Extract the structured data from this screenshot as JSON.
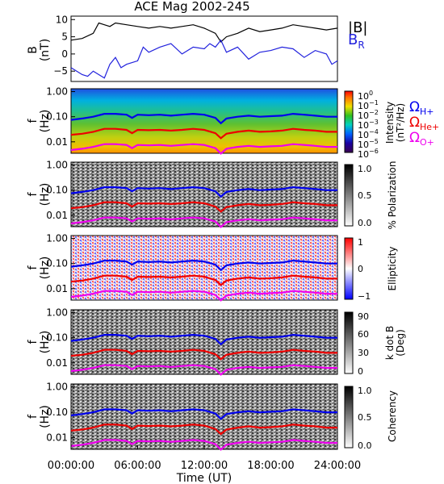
{
  "chart_data": {
    "type": "spectrogram-stack",
    "title": "ACE Mag 2002-245",
    "xlabel": "Time (UT)",
    "x_ticks": [
      "00:00:00",
      "06:00:00",
      "12:00:00",
      "18:00:00",
      "24:00:00"
    ],
    "xlim_hours": [
      0,
      24
    ],
    "colors": {
      "total": "#000000",
      "radial": "#2222dd",
      "h_plus": "#0000ee",
      "he_plus": "#ee0000",
      "o_plus": "#ee00ee"
    },
    "panels": [
      {
        "id": "field",
        "type": "line",
        "ylabel_lines": [
          "B",
          "(nT)"
        ],
        "ylim": [
          -8,
          11
        ],
        "y_ticks": [
          10,
          5,
          0,
          -5
        ],
        "y_tick_labels": [
          "10",
          "5",
          "0",
          "−5"
        ],
        "legend": [
          {
            "name": "|B|",
            "color": "#000000"
          },
          {
            "name_main": "B",
            "name_sub": "R",
            "color": "#2222dd"
          }
        ],
        "series": [
          {
            "name": "|B|",
            "color": "#000000",
            "x": [
              0,
              1,
              2,
              2.5,
              3,
              3.5,
              4,
              5,
              6,
              7,
              8,
              9,
              10,
              11,
              12,
              13,
              13.5,
              14,
              15,
              16,
              17,
              18,
              19,
              20,
              21,
              22,
              23,
              24
            ],
            "y": [
              4,
              4.5,
              6,
              9,
              8.5,
              8,
              9,
              8.5,
              8,
              7.5,
              8,
              7.5,
              8,
              8.5,
              7.5,
              6,
              3.5,
              5,
              6,
              7.5,
              6.5,
              7,
              7.5,
              8.5,
              8,
              7.5,
              7,
              7.5
            ]
          },
          {
            "name": "B_R",
            "color": "#2222dd",
            "x": [
              0,
              1,
              1.5,
              2,
              2.5,
              3,
              3.5,
              4,
              4.5,
              5,
              6,
              6.5,
              7,
              8,
              9,
              10,
              11,
              12,
              12.5,
              13,
              13.5,
              14,
              15,
              16,
              17,
              18,
              19,
              20,
              21,
              22,
              23,
              23.5,
              24
            ],
            "y": [
              -4,
              -6,
              -6.5,
              -5,
              -6,
              -7,
              -3,
              -1,
              -4,
              -3,
              -2,
              2,
              0.5,
              2,
              3,
              0,
              2,
              1.5,
              3,
              2,
              4,
              0.5,
              2,
              -1.5,
              0.5,
              1,
              2,
              1.5,
              -1,
              1,
              0,
              -3,
              -2
            ]
          }
        ]
      },
      {
        "id": "intensity",
        "type": "heatmap",
        "ylabel_lines": [
          "f",
          "(Hz)"
        ],
        "ylim_log": [
          0.0035,
          1.3
        ],
        "y_ticks": [
          1.0,
          0.1,
          0.01
        ],
        "y_tick_labels": [
          "1.00",
          "0.10",
          "0.01"
        ],
        "colorbar": {
          "label_lines": [
            "Intensity",
            "(nT²/Hz)"
          ],
          "ticks": [
            {
              "value": 1,
              "base": "10",
              "exp": "0"
            },
            {
              "value": 0.1,
              "base": "10",
              "exp": "−1"
            },
            {
              "value": 0.01,
              "base": "10",
              "exp": "−2"
            },
            {
              "value": 0.001,
              "base": "10",
              "exp": "−3"
            },
            {
              "value": 0.0001,
              "base": "10",
              "exp": "−4"
            },
            {
              "value": 1e-05,
              "base": "10",
              "exp": "−5"
            },
            {
              "value": 1e-06,
              "base": "10",
              "exp": "−6"
            }
          ]
        },
        "gyro_labels": [
          {
            "symbol": "Ω",
            "sub": "H+",
            "color": "#0000ee"
          },
          {
            "symbol": "Ω",
            "sub": "He+",
            "color": "#ee0000"
          },
          {
            "symbol": "Ω",
            "sub": "O+",
            "color": "#ee00ee"
          }
        ]
      },
      {
        "id": "polarization",
        "type": "heatmap",
        "ylabel_lines": [
          "f",
          "(Hz)"
        ],
        "ylim_log": [
          0.0035,
          1.3
        ],
        "y_ticks": [
          1.0,
          0.1,
          0.01
        ],
        "y_tick_labels": [
          "1.00",
          "0.10",
          "0.01"
        ],
        "colorbar": {
          "label_lines": [
            "% Polarization"
          ],
          "ticks": [
            {
              "value": 1.0,
              "label": "1.0"
            },
            {
              "value": 0.5,
              "label": "0.5"
            },
            {
              "value": 0.0,
              "label": "0.0"
            }
          ]
        }
      },
      {
        "id": "ellipticity",
        "type": "heatmap",
        "ylabel_lines": [
          "f",
          "(Hz)"
        ],
        "ylim_log": [
          0.0035,
          1.3
        ],
        "y_ticks": [
          1.0,
          0.1,
          0.01
        ],
        "y_tick_labels": [
          "1.00",
          "0.10",
          "0.01"
        ],
        "colorbar": {
          "label_lines": [
            "Ellipticity"
          ],
          "ticks": [
            {
              "value": 1,
              "label": "1"
            },
            {
              "value": 0,
              "label": "0"
            },
            {
              "value": -1,
              "label": "−1"
            }
          ]
        }
      },
      {
        "id": "kdotb",
        "type": "heatmap",
        "ylabel_lines": [
          "f",
          "(Hz)"
        ],
        "ylim_log": [
          0.0035,
          1.3
        ],
        "y_ticks": [
          1.0,
          0.1,
          0.01
        ],
        "y_tick_labels": [
          "1.00",
          "0.10",
          "0.01"
        ],
        "colorbar": {
          "label_lines": [
            "k dot B",
            "(Deg)"
          ],
          "ticks": [
            {
              "value": 90,
              "label": "90"
            },
            {
              "value": 60,
              "label": "60"
            },
            {
              "value": 30,
              "label": "30"
            },
            {
              "value": 0,
              "label": "0"
            }
          ]
        }
      },
      {
        "id": "coherency",
        "type": "heatmap",
        "ylabel_lines": [
          "f",
          "(Hz)"
        ],
        "ylim_log": [
          0.0035,
          1.3
        ],
        "y_ticks": [
          1.0,
          0.1,
          0.01
        ],
        "y_tick_labels": [
          "1.00",
          "0.10",
          "0.01"
        ],
        "colorbar": {
          "label_lines": [
            "Coherency"
          ],
          "ticks": [
            {
              "value": 1.0,
              "label": "1.0"
            },
            {
              "value": 0.5,
              "label": "0.5"
            },
            {
              "value": 0.0,
              "label": "0.0"
            }
          ]
        }
      }
    ],
    "gyrofrequency_curves": {
      "x": [
        0,
        1,
        2,
        3,
        4,
        5,
        5.5,
        6,
        7,
        8,
        9,
        10,
        11,
        12,
        13,
        13.5,
        14,
        15,
        16,
        17,
        18,
        19,
        20,
        21,
        22,
        23,
        24
      ],
      "h_plus_hz": [
        0.075,
        0.085,
        0.1,
        0.13,
        0.13,
        0.12,
        0.09,
        0.12,
        0.115,
        0.12,
        0.11,
        0.12,
        0.13,
        0.12,
        0.09,
        0.055,
        0.085,
        0.1,
        0.11,
        0.1,
        0.105,
        0.11,
        0.13,
        0.12,
        0.11,
        0.1,
        0.1
      ],
      "he_plus_hz": [
        0.019,
        0.021,
        0.025,
        0.033,
        0.033,
        0.03,
        0.022,
        0.03,
        0.029,
        0.03,
        0.028,
        0.03,
        0.033,
        0.03,
        0.022,
        0.014,
        0.021,
        0.025,
        0.028,
        0.025,
        0.026,
        0.028,
        0.033,
        0.03,
        0.028,
        0.025,
        0.025
      ],
      "o_plus_hz": [
        0.0047,
        0.0053,
        0.0063,
        0.0081,
        0.0081,
        0.0075,
        0.0056,
        0.0075,
        0.0072,
        0.0075,
        0.0069,
        0.0075,
        0.0081,
        0.0075,
        0.0056,
        0.0034,
        0.0053,
        0.0063,
        0.0069,
        0.0063,
        0.0066,
        0.0069,
        0.0081,
        0.0075,
        0.0069,
        0.0063,
        0.0063
      ]
    }
  }
}
